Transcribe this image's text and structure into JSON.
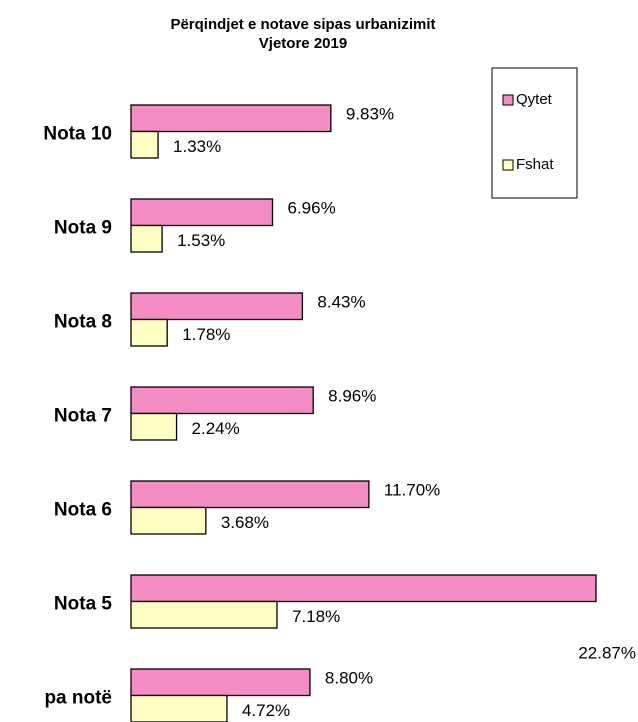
{
  "chart_data": {
    "type": "bar",
    "orientation": "horizontal",
    "title": "Përqindjet e notave sipas urbanizimit",
    "subtitle": "Vjetore 2019",
    "categories": [
      "Nota 10",
      "Nota 9",
      "Nota 8",
      "Nota 7",
      "Nota 6",
      "Nota 5",
      "pa notë"
    ],
    "series": [
      {
        "name": "Qytet",
        "color": "#f48cc4",
        "values": [
          9.83,
          6.96,
          8.43,
          8.96,
          11.7,
          22.87,
          8.8
        ],
        "value_labels": [
          "9.83%",
          "6.96%",
          "8.43%",
          "8.96%",
          "11.70%",
          "22.87%",
          "8.80%"
        ]
      },
      {
        "name": "Fshat",
        "color": "#ffffc4",
        "values": [
          1.33,
          1.53,
          1.78,
          2.24,
          3.68,
          7.18,
          4.72
        ],
        "value_labels": [
          "1.33%",
          "1.53%",
          "1.78%",
          "2.24%",
          "3.68%",
          "7.18%",
          "4.72%"
        ]
      }
    ],
    "legend": "top-right"
  }
}
